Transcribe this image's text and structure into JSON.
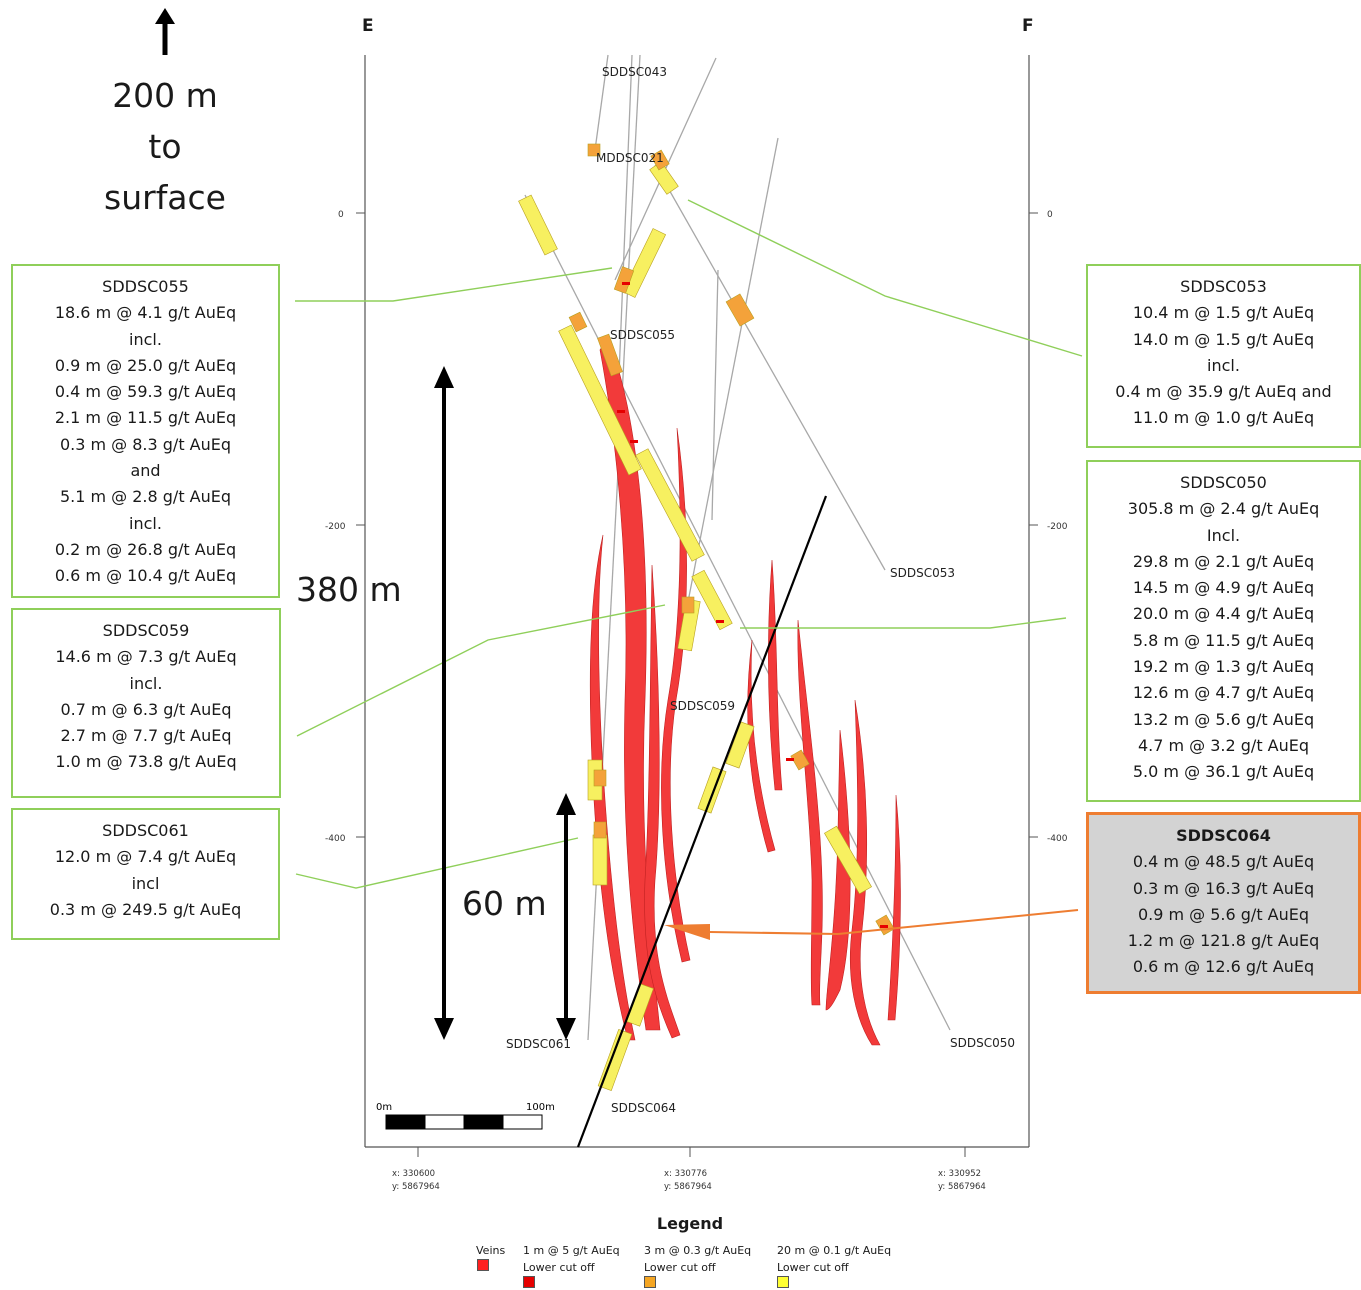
{
  "section": {
    "left_label": "E",
    "right_label": "F"
  },
  "north_note": {
    "line1": "200 m",
    "line2": "to",
    "line3": "surface"
  },
  "dimensions": {
    "big": "380 m",
    "small": "60 m"
  },
  "elevation_ticks": [
    "0",
    "-200",
    "-400"
  ],
  "easting_ticks": [
    {
      "x": "x: 330600",
      "y": "y: 5867964"
    },
    {
      "x": "x: 330776",
      "y": "y: 5867964"
    },
    {
      "x": "x: 330952",
      "y": "y: 5867964"
    }
  ],
  "scale_bar": {
    "start": "0m",
    "end": "100m"
  },
  "hole_labels": [
    "SDDSC043",
    "MDDSC021",
    "SDDSC055",
    "SDDSC053",
    "SDDSC059",
    "SDDSC061",
    "SDDSC050",
    "SDDSC064"
  ],
  "intercepts": [
    {
      "lines": [
        "SDDSC055",
        "18.6 m @ 4.1 g/t AuEq",
        "incl.",
        "0.9 m @ 25.0 g/t AuEq",
        "0.4 m @ 59.3 g/t AuEq",
        "2.1 m @ 11.5 g/t AuEq",
        "0.3 m @ 8.3 g/t AuEq",
        "and",
        "5.1 m @ 2.8 g/t AuEq",
        "incl.",
        "0.2 m @ 26.8 g/t AuEq",
        "0.6 m @ 10.4 g/t AuEq"
      ]
    },
    {
      "lines": [
        "SDDSC059",
        "14.6 m @ 7.3 g/t AuEq",
        "incl.",
        "0.7 m @ 6.3 g/t AuEq",
        "2.7 m @ 7.7 g/t AuEq",
        "1.0 m @ 73.8 g/t AuEq"
      ]
    },
    {
      "lines": [
        "SDDSC061",
        "12.0 m @ 7.4 g/t AuEq",
        "incl",
        "0.3 m @ 249.5 g/t AuEq"
      ]
    },
    {
      "lines": [
        "SDDSC053",
        "10.4 m @ 1.5 g/t AuEq",
        "14.0 m @ 1.5 g/t AuEq",
        "incl.",
        "0.4 m @ 35.9 g/t AuEq and",
        "11.0 m @ 1.0 g/t AuEq"
      ]
    },
    {
      "lines": [
        "SDDSC050",
        "305.8 m @ 2.4 g/t AuEq",
        "Incl.",
        "29.8 m @ 2.1 g/t AuEq",
        "14.5 m @ 4.9 g/t AuEq",
        "20.0 m @ 4.4 g/t AuEq",
        "5.8 m @ 11.5 g/t AuEq",
        "19.2 m @ 1.3 g/t AuEq",
        "12.6 m @ 4.7 g/t AuEq",
        "13.2 m @ 5.6 g/t AuEq",
        "4.7 m @ 3.2 g/t AuEq",
        "5.0 m @ 36.1 g/t AuEq"
      ]
    },
    {
      "lines": [
        "SDDSC064",
        "0.4 m @ 48.5 g/t AuEq",
        "0.3 m @ 16.3 g/t AuEq",
        "0.9 m @ 5.6 g/t AuEq",
        "1.2 m @ 121.8 g/t AuEq",
        "0.6 m @ 12.6 g/t AuEq"
      ]
    }
  ],
  "legend": {
    "title": "Legend",
    "items": [
      {
        "line1": "Veins",
        "line2": "",
        "color": "#ff2020"
      },
      {
        "line1": "1 m @ 5 g/t AuEq",
        "line2": "Lower cut off",
        "color": "#e60000"
      },
      {
        "line1": "3 m @ 0.3 g/t AuEq",
        "line2": "Lower cut off",
        "color": "#f5a623"
      },
      {
        "line1": "20 m @ 0.1 g/t AuEq",
        "line2": "Lower cut off",
        "color": "#ffff33"
      }
    ]
  },
  "colors": {
    "vein": "#f23a3a",
    "green_callout": "#8fcf5a",
    "orange_callout": "#ee7d31",
    "yellow_interval": "#f7f060",
    "orange_interval": "#f4a23a"
  }
}
